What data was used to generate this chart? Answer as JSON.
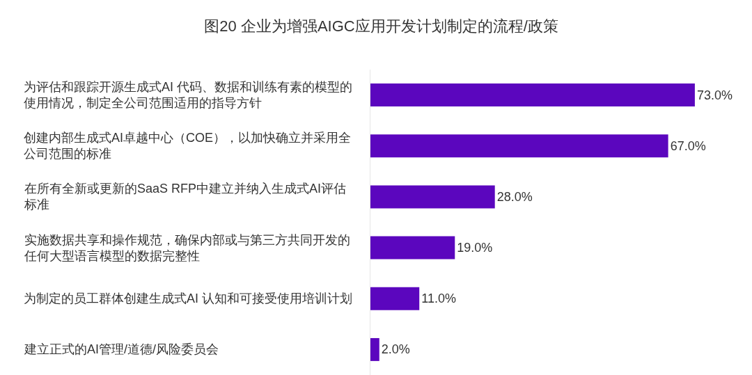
{
  "chart_data": {
    "type": "bar",
    "orientation": "horizontal",
    "title": "图20 企业为增强AIGC应用开发计划制定的流程/政策",
    "categories": [
      "为评估和跟踪开源生成式AI 代码、数据和训练有素的模型的使用情况，制定全公司范围适用的指导方针",
      "创建内部生成式AI卓越中心（COE），以加快确立并采用全公司范围的标准",
      "在所有全新或更新的SaaS RFP中建立并纳入生成式AI评估标准",
      "实施数据共享和操作规范，确保内部或与第三方共同开发的任何大型语言模型的数据完整性",
      "为制定的员工群体创建生成式AI 认知和可接受使用培训计划",
      "建立正式的AI管理/道德/风险委员会"
    ],
    "values": [
      73.0,
      67.0,
      28.0,
      19.0,
      11.0,
      2.0
    ],
    "value_labels": [
      "73.0%",
      "67.0%",
      "28.0%",
      "19.0%",
      "11.0%",
      "2.0%"
    ],
    "color": "#5b06be",
    "tick_labels": "y"
  }
}
